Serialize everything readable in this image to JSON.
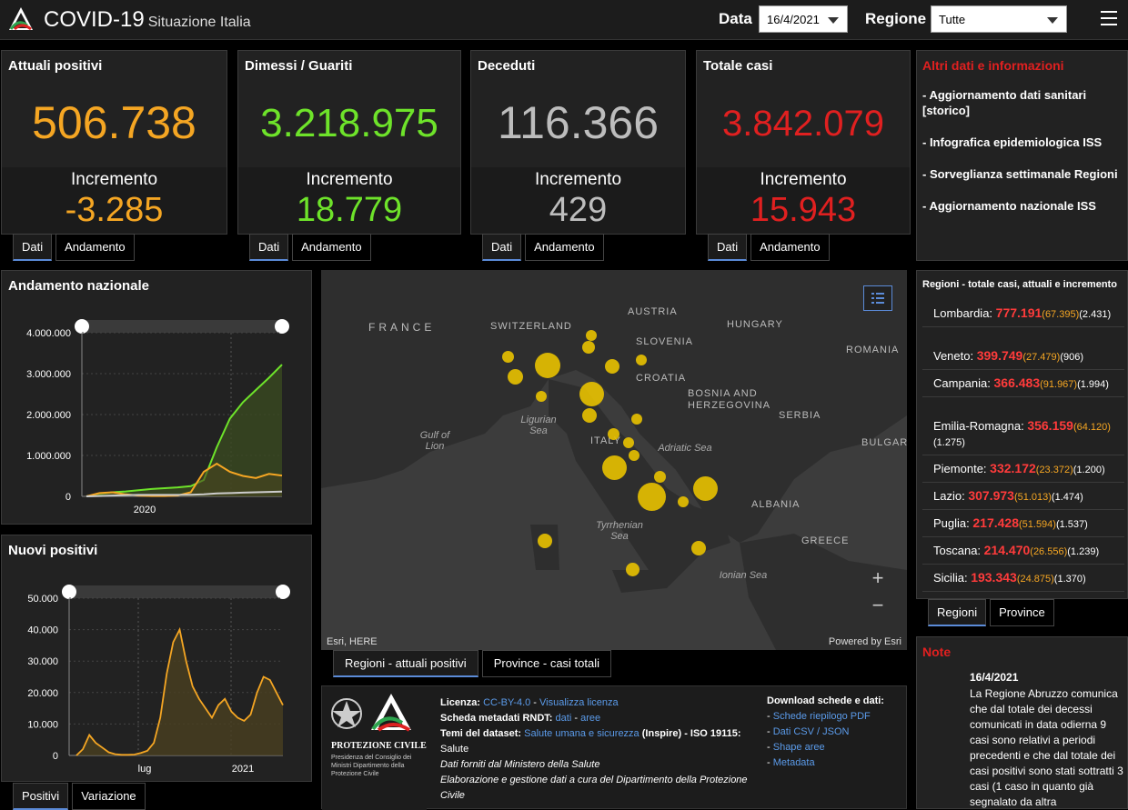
{
  "header": {
    "title": "COVID-19",
    "subtitle": "Situazione Italia",
    "date_label": "Data",
    "date_value": "16/4/2021",
    "region_label": "Regione",
    "region_value": "Tutte"
  },
  "cards": [
    {
      "title": "Attuali positivi",
      "value": "506.738",
      "inc_label": "Incremento",
      "inc_value": "-3.285",
      "color": "#f5a623",
      "tabs": [
        "Dati",
        "Andamento"
      ]
    },
    {
      "title": "Dimessi / Guariti",
      "value": "3.218.975",
      "inc_label": "Incremento",
      "inc_value": "18.779",
      "color": "#6ee32a",
      "tabs": [
        "Dati",
        "Andamento"
      ]
    },
    {
      "title": "Deceduti",
      "value": "116.366",
      "inc_label": "Incremento",
      "inc_value": "429",
      "color": "#bdbdbd",
      "tabs": [
        "Dati",
        "Andamento"
      ]
    },
    {
      "title": "Totale casi",
      "value": "3.842.079",
      "inc_label": "Incremento",
      "inc_value": "15.943",
      "color": "#e02020",
      "tabs": [
        "Dati",
        "Andamento"
      ]
    }
  ],
  "info": {
    "title": "Altri dati e informazioni",
    "items": [
      "- Aggiornamento dati sanitari [storico]",
      "- Infografica epidemiologica ISS",
      "- Sorveglianza settimanale Regioni",
      "- Aggiornamento nazionale ISS"
    ]
  },
  "andamento": {
    "title": "Andamento nazionale",
    "chart_data": {
      "type": "line",
      "ylim": [
        0,
        4000000
      ],
      "yticks": [
        "4.000.000",
        "3.000.000",
        "2.000.000",
        "1.000.000",
        "0"
      ],
      "xticks": [
        "2020"
      ],
      "series": [
        {
          "color": "#6ee32a",
          "values": [
            0,
            0.05,
            0.1,
            0.12,
            0.15,
            0.18,
            0.2,
            0.22,
            0.25,
            0.4,
            1.2,
            1.9,
            2.3,
            2.6,
            2.9,
            3.22
          ]
        },
        {
          "color": "#f5a623",
          "values": [
            0,
            0.08,
            0.1,
            0.05,
            0.02,
            0.01,
            0.01,
            0.02,
            0.1,
            0.6,
            0.8,
            0.6,
            0.5,
            0.45,
            0.55,
            0.51
          ]
        },
        {
          "color": "#cccccc",
          "values": [
            0,
            0.01,
            0.02,
            0.03,
            0.035,
            0.035,
            0.035,
            0.036,
            0.04,
            0.05,
            0.07,
            0.08,
            0.09,
            0.1,
            0.11,
            0.116
          ]
        }
      ]
    }
  },
  "nuovi": {
    "title": "Nuovi positivi",
    "chart_data": {
      "type": "area",
      "ylim": [
        0,
        50000
      ],
      "yticks": [
        "50.000",
        "40.000",
        "30.000",
        "20.000",
        "10.000",
        "0"
      ],
      "xticks": [
        "lug",
        "2021"
      ],
      "values": [
        0,
        2000,
        6500,
        4000,
        2500,
        1000,
        400,
        200,
        200,
        300,
        800,
        1500,
        4000,
        12000,
        26000,
        36000,
        40000,
        30000,
        22000,
        18000,
        15000,
        12000,
        16000,
        18000,
        14000,
        12000,
        11000,
        13000,
        20000,
        25000,
        24000,
        20000,
        16000
      ]
    }
  },
  "bottom_tabs_left": [
    "Positivi",
    "Variazione"
  ],
  "map": {
    "labels": [
      "FRANCE",
      "SWITZERLAND",
      "AUSTRIA",
      "HUNGARY",
      "SLOVENIA",
      "CROATIA",
      "ROMANIA",
      "BOSNIA AND HERZEGOVINA",
      "SERBIA",
      "ITALY",
      "BULGARI",
      "ALBANIA",
      "GREECE"
    ],
    "seas": [
      "Ligurian Sea",
      "Gulf of Lion",
      "Adriatic Sea",
      "Tyrrhenian Sea",
      "Ionian Sea"
    ],
    "credit_left": "Esri, HERE",
    "credit_right": "Powered by Esri",
    "tabs": [
      "Regioni - attuali positivi",
      "Province - casi totali"
    ]
  },
  "regions": {
    "title": "Regioni - totale casi, attuali e incremento",
    "rows": [
      {
        "name": "Lombardia:",
        "total": "777.191",
        "active": "(67.395)",
        "inc": "(2.431)"
      },
      {
        "name": "Veneto:",
        "total": "399.749",
        "active": "(27.479)",
        "inc": "(906)"
      },
      {
        "name": "Campania:",
        "total": "366.483",
        "active": "(91.967)",
        "inc": "(1.994)"
      },
      {
        "name": "Emilia-Romagna:",
        "total": "356.159",
        "active": "(64.120)",
        "inc": "(1.275)"
      },
      {
        "name": "Piemonte:",
        "total": "332.172",
        "active": "(23.372)",
        "inc": "(1.200)"
      },
      {
        "name": "Lazio:",
        "total": "307.973",
        "active": "(51.013)",
        "inc": "(1.474)"
      },
      {
        "name": "Puglia:",
        "total": "217.428",
        "active": "(51.594)",
        "inc": "(1.537)"
      },
      {
        "name": "Toscana:",
        "total": "214.470",
        "active": "(26.556)",
        "inc": "(1.239)"
      },
      {
        "name": "Sicilia:",
        "total": "193.343",
        "active": "(24.875)",
        "inc": "(1.370)"
      }
    ],
    "tabs": [
      "Regioni",
      "Province"
    ]
  },
  "footer": {
    "logo_text": "PROTEZIONE CIVILE",
    "logo_sub": "Presidenza del Consiglio dei Ministri Dipartimento della Protezione Civile",
    "licenza_label": "Licenza:",
    "licenza_val": "CC-BY-4.0",
    "licenza_link": "Visualizza licenza",
    "scheda_label": "Scheda metadati RNDT:",
    "scheda_l1": "dati",
    "scheda_l2": "aree",
    "temi_label": "Temi del dataset:",
    "temi_link": "Salute umana e sicurezza",
    "temi_rest": "(Inspire) - ISO 19115:",
    "temi_val": "Salute",
    "line1": "Dati forniti dal Ministero della Salute",
    "line2": "Elaborazione e gestione dati a cura del Dipartimento della Protezione Civile",
    "dl_title": "Download schede e dati:",
    "dl_links": [
      "Schede riepilogo PDF",
      "Dati CSV / JSON",
      "Shape aree",
      "Metadata"
    ]
  },
  "note": {
    "title": "Note",
    "date": "16/4/2021",
    "text": "La Regione Abruzzo comunica che dal totale dei decessi comunicati in data odierna 9 casi sono relativi a periodi precedenti e che dal totale dei casi positivi sono stati sottratti 3 casi (1 caso in quanto già segnalato da altra"
  }
}
